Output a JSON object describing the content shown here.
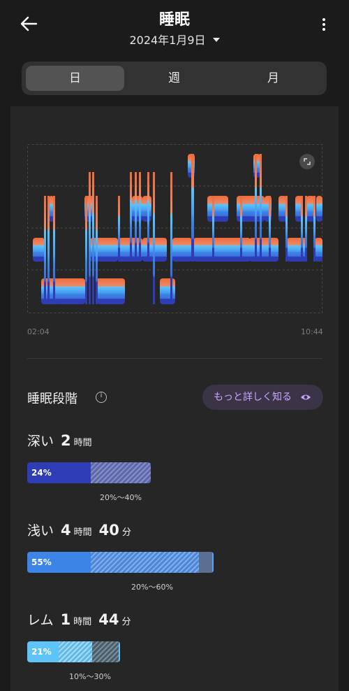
{
  "header": {
    "title": "睡眠",
    "date": "2024年1月9日",
    "back_icon": "arrow-left-icon",
    "more_icon": "more-vertical-icon"
  },
  "tabs": [
    {
      "label": "日",
      "active": true
    },
    {
      "label": "週",
      "active": false
    },
    {
      "label": "月",
      "active": false
    }
  ],
  "chart": {
    "start_time": "02:04",
    "end_time": "10:44",
    "expand_icon": "expand-icon",
    "colors": {
      "deep": "#2e3db5",
      "light": "#3c84e6",
      "rem": "#5ec4f8",
      "awake": "#ef6b3a"
    }
  },
  "stages": {
    "title": "睡眠段階",
    "learn_more": "もっと詳しく知る",
    "items": [
      {
        "name": "深い",
        "hours": "2",
        "hour_unit": "時間",
        "minutes": "",
        "minute_unit": "",
        "percent": "24%",
        "value": 24,
        "range": "20%〜40%",
        "color": "#2e3db5"
      },
      {
        "name": "浅い",
        "hours": "4",
        "hour_unit": "時間",
        "minutes": "40",
        "minute_unit": "分",
        "percent": "55%",
        "value": 55,
        "range": "20%〜60%",
        "color": "#3c84e6"
      },
      {
        "name": "レム",
        "hours": "1",
        "hour_unit": "時間",
        "minutes": "44",
        "minute_unit": "分",
        "percent": "21%",
        "value": 21,
        "range": "10%〜30%",
        "color": "#5ec4f8"
      }
    ]
  }
}
